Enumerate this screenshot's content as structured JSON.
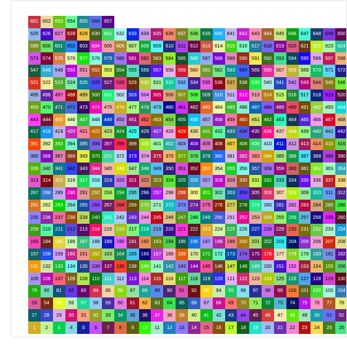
{
  "image": {
    "description_free": true,
    "start_number": 1,
    "end_number": 657,
    "columns": 26,
    "rows": 26,
    "last_row_count": 7
  },
  "palette": {
    "row_colors": [
      [
        "#ffffff",
        "#ff0000",
        "#00bfff",
        "#00ff7f",
        "#ff00ff",
        "#ff7f00",
        "#7f00ff",
        "#00ff00",
        "#7fff00",
        "#00ffff",
        "#0000ff",
        "#ff007f",
        "#bfbfbf",
        "#7f7f7f",
        "#3f3f3f",
        "#ffff00",
        "#bf7fff",
        "#7fbfff",
        "#ffbf7f",
        "#7fff7f",
        "#ff7fbf",
        "#bfff7f",
        "#7f7fff",
        "#000000",
        "#ffffff",
        "#0000ff"
      ]
    ]
  },
  "colors": {
    "panel_border": "#e6e6e6",
    "gridline": "#ececec",
    "tick": "#444444"
  }
}
